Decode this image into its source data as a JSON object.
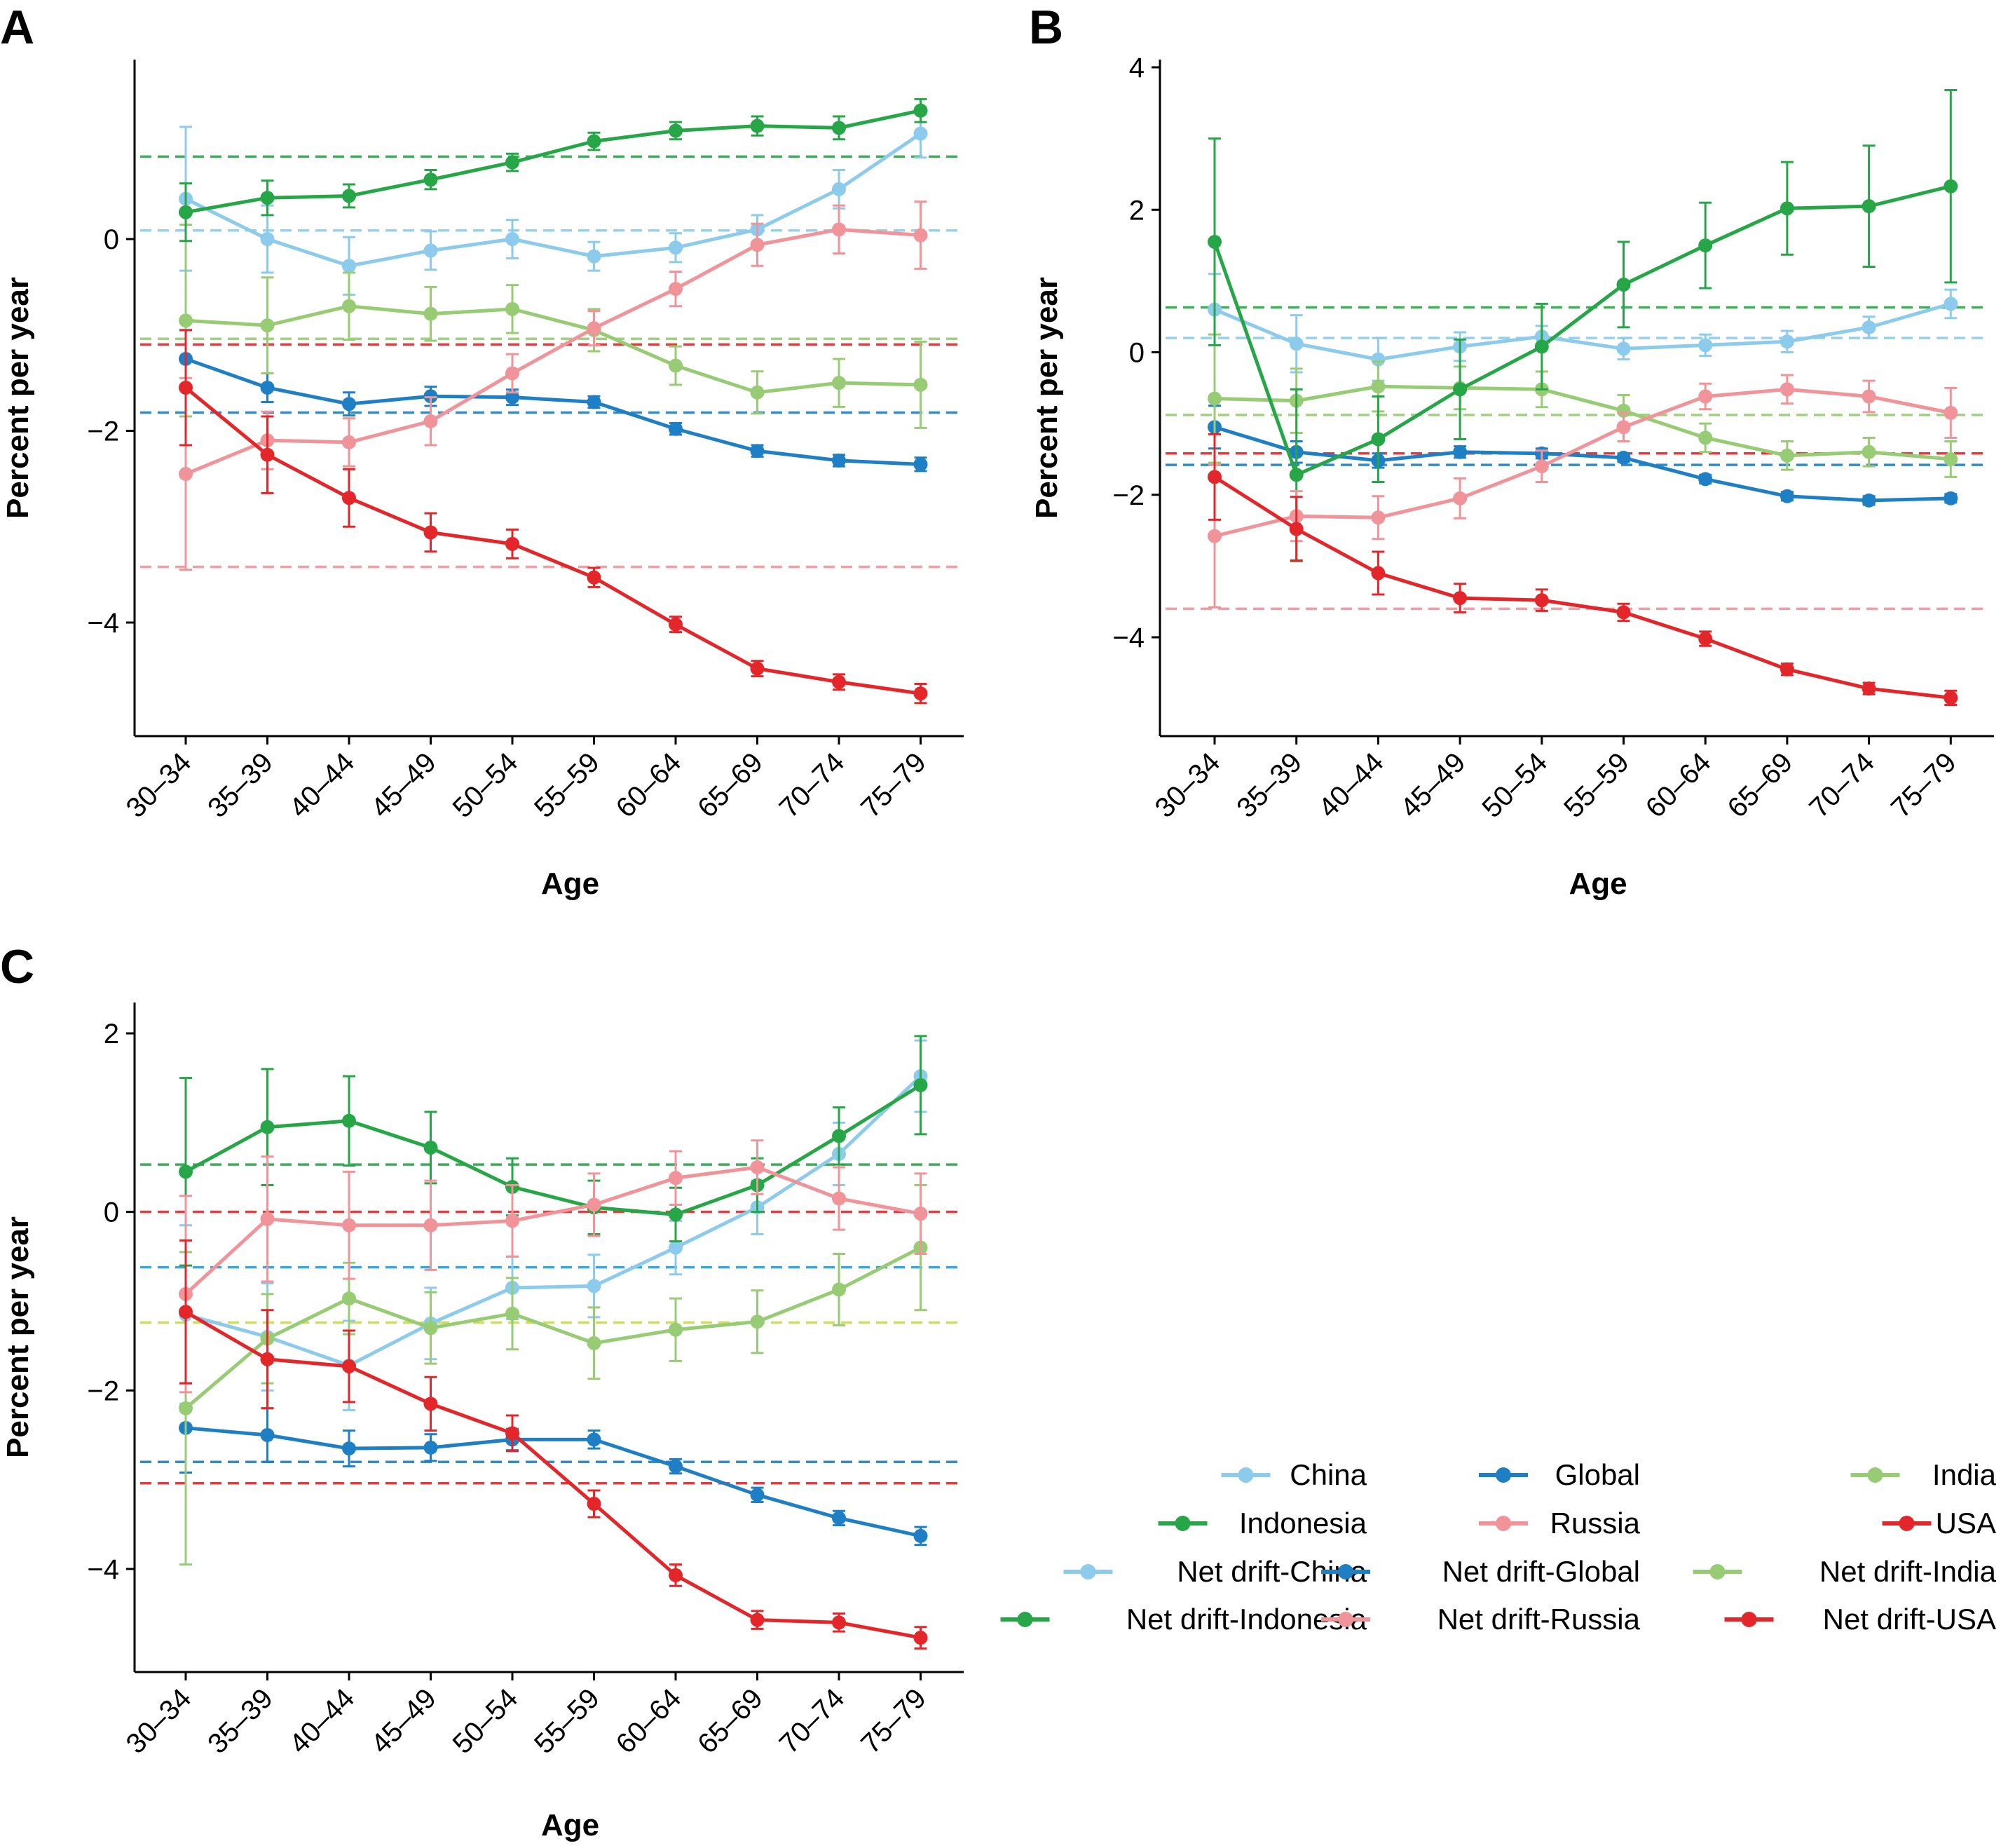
{
  "colors": {
    "China": "#8ccbeb",
    "Global": "#1f7fc4",
    "India": "#98cc74",
    "Indonesia": "#27a647",
    "Russia": "#f09499",
    "USA": "#e3262a",
    "axis": "#000000"
  },
  "legend": {
    "items": [
      {
        "label": "China",
        "color": "#8ccbeb"
      },
      {
        "label": "Global",
        "color": "#1f7fc4"
      },
      {
        "label": "India",
        "color": "#98cc74"
      },
      {
        "label": "Indonesia",
        "color": "#27a647"
      },
      {
        "label": "Russia",
        "color": "#f09499"
      },
      {
        "label": "USA",
        "color": "#e3262a"
      },
      {
        "label": "Net drift-China",
        "color": "#8ccbeb"
      },
      {
        "label": "Net drift-Global",
        "color": "#1f7fc4"
      },
      {
        "label": "Net drift-India",
        "color": "#98cc74"
      },
      {
        "label": "Net drift-Indonesia",
        "color": "#27a647"
      },
      {
        "label": "Net drift-Russia",
        "color": "#f09499"
      },
      {
        "label": "Net drift-USA",
        "color": "#e3262a"
      }
    ]
  },
  "chart_data": [
    {
      "panel": "A",
      "type": "line",
      "xlabel": "Age",
      "ylabel": "Percent per year",
      "categories": [
        "30–34",
        "35–39",
        "40–44",
        "45–49",
        "50–54",
        "55–59",
        "60–64",
        "65–69",
        "70–74",
        "75–79"
      ],
      "ylim": [
        -5.1,
        1.9
      ],
      "yticks": [
        0,
        -2,
        -4
      ],
      "ytick_labels": [
        "0",
        "−2",
        "−4"
      ],
      "series": [
        {
          "name": "China",
          "color": "#8ccbeb",
          "values": [
            0.42,
            0.0,
            -0.28,
            -0.12,
            0.0,
            -0.18,
            -0.09,
            0.1,
            0.52,
            1.1
          ],
          "err": [
            0.75,
            0.35,
            0.3,
            0.2,
            0.2,
            0.15,
            0.15,
            0.15,
            0.2,
            0.25
          ]
        },
        {
          "name": "Global",
          "color": "#1f7fc4",
          "values": [
            -1.25,
            -1.55,
            -1.72,
            -1.64,
            -1.65,
            -1.7,
            -1.98,
            -2.21,
            -2.31,
            -2.35
          ],
          "err": [
            0.3,
            0.15,
            0.12,
            0.1,
            0.08,
            0.06,
            0.06,
            0.06,
            0.06,
            0.07
          ]
        },
        {
          "name": "India",
          "color": "#98cc74",
          "values": [
            -0.85,
            -0.9,
            -0.7,
            -0.78,
            -0.73,
            -0.95,
            -1.32,
            -1.6,
            -1.5,
            -1.52
          ],
          "err": [
            1.0,
            0.5,
            0.35,
            0.28,
            0.25,
            0.22,
            0.2,
            0.22,
            0.25,
            0.45
          ]
        },
        {
          "name": "Indonesia",
          "color": "#27a647",
          "values": [
            0.28,
            0.43,
            0.45,
            0.62,
            0.8,
            1.02,
            1.13,
            1.18,
            1.16,
            1.34
          ],
          "err": [
            0.3,
            0.18,
            0.12,
            0.1,
            0.09,
            0.09,
            0.09,
            0.1,
            0.12,
            0.12
          ]
        },
        {
          "name": "Russia",
          "color": "#f09499",
          "values": [
            -2.45,
            -2.1,
            -2.12,
            -1.9,
            -1.4,
            -0.93,
            -0.52,
            -0.06,
            0.1,
            0.04
          ],
          "err": [
            1.0,
            0.3,
            0.25,
            0.25,
            0.2,
            0.18,
            0.18,
            0.22,
            0.25,
            0.35
          ]
        },
        {
          "name": "USA",
          "color": "#e3262a",
          "values": [
            -1.55,
            -2.25,
            -2.7,
            -3.06,
            -3.18,
            -3.53,
            -4.02,
            -4.48,
            -4.62,
            -4.74
          ],
          "err": [
            0.6,
            0.4,
            0.3,
            0.2,
            0.15,
            0.1,
            0.08,
            0.08,
            0.08,
            0.1
          ]
        }
      ],
      "net_drift": [
        {
          "name": "Net drift-Indonesia",
          "color": "#27a647",
          "value": 0.86
        },
        {
          "name": "Net drift-China",
          "color": "#8ccbeb",
          "value": 0.09
        },
        {
          "name": "Net drift-India",
          "color": "#98cc74",
          "value": -1.04
        },
        {
          "name": "Net drift-USA",
          "color": "#e3262a",
          "value": -1.1
        },
        {
          "name": "Net drift-Global",
          "color": "#1f7fc4",
          "value": -1.81
        },
        {
          "name": "Net drift-Russia",
          "color": "#f09499",
          "value": -3.42
        }
      ]
    },
    {
      "panel": "B",
      "type": "line",
      "xlabel": "Age",
      "ylabel": "Percent per year",
      "categories": [
        "30–34",
        "35–39",
        "40–44",
        "45–49",
        "50–54",
        "55–59",
        "60–64",
        "65–69",
        "70–74",
        "75–79"
      ],
      "ylim": [
        -5.4,
        4.2
      ],
      "yticks": [
        4,
        2,
        0,
        -2,
        -4
      ],
      "ytick_labels": [
        "4",
        "2",
        "0",
        "−2",
        "−4"
      ],
      "series": [
        {
          "name": "China",
          "color": "#8ccbeb",
          "values": [
            0.6,
            0.12,
            -0.1,
            0.08,
            0.22,
            0.05,
            0.1,
            0.15,
            0.35,
            0.68
          ],
          "err": [
            0.5,
            0.4,
            0.3,
            0.2,
            0.15,
            0.15,
            0.15,
            0.15,
            0.15,
            0.2
          ]
        },
        {
          "name": "Global",
          "color": "#1f7fc4",
          "values": [
            -1.05,
            -1.4,
            -1.52,
            -1.4,
            -1.42,
            -1.48,
            -1.78,
            -2.02,
            -2.08,
            -2.05
          ],
          "err": [
            0.3,
            0.15,
            0.1,
            0.08,
            0.07,
            0.06,
            0.06,
            0.06,
            0.06,
            0.06
          ]
        },
        {
          "name": "India",
          "color": "#98cc74",
          "values": [
            -0.65,
            -0.68,
            -0.48,
            -0.5,
            -0.52,
            -0.82,
            -1.2,
            -1.45,
            -1.4,
            -1.5
          ],
          "err": [
            0.9,
            0.45,
            0.35,
            0.3,
            0.25,
            0.22,
            0.2,
            0.2,
            0.2,
            0.25
          ]
        },
        {
          "name": "Indonesia",
          "color": "#27a647",
          "values": [
            1.55,
            -1.72,
            -1.22,
            -0.52,
            0.08,
            0.95,
            1.5,
            2.02,
            2.05,
            2.33
          ],
          "err": [
            1.45,
            1.2,
            0.6,
            0.7,
            0.6,
            0.6,
            0.6,
            0.65,
            0.85,
            1.35
          ]
        },
        {
          "name": "Russia",
          "color": "#f09499",
          "values": [
            -2.58,
            -2.3,
            -2.32,
            -2.05,
            -1.6,
            -1.05,
            -0.62,
            -0.52,
            -0.62,
            -0.85
          ],
          "err": [
            1.0,
            0.35,
            0.3,
            0.28,
            0.22,
            0.2,
            0.18,
            0.2,
            0.22,
            0.35
          ]
        },
        {
          "name": "USA",
          "color": "#e3262a",
          "values": [
            -1.75,
            -2.48,
            -3.1,
            -3.45,
            -3.48,
            -3.65,
            -4.02,
            -4.45,
            -4.72,
            -4.85
          ],
          "err": [
            0.6,
            0.45,
            0.3,
            0.2,
            0.15,
            0.12,
            0.1,
            0.08,
            0.08,
            0.1
          ]
        }
      ],
      "net_drift": [
        {
          "name": "Net drift-Indonesia",
          "color": "#27a647",
          "value": 0.63
        },
        {
          "name": "Net drift-China",
          "color": "#8ccbeb",
          "value": 0.2
        },
        {
          "name": "Net drift-India",
          "color": "#98cc74",
          "value": -0.88
        },
        {
          "name": "Net drift-USA",
          "color": "#e3262a",
          "value": -1.42
        },
        {
          "name": "Net drift-Global",
          "color": "#1f7fc4",
          "value": -1.58
        },
        {
          "name": "Net drift-Russia",
          "color": "#f09499",
          "value": -3.6
        }
      ]
    },
    {
      "panel": "C",
      "type": "line",
      "xlabel": "Age",
      "ylabel": "Percent per year",
      "categories": [
        "30–34",
        "35–39",
        "40–44",
        "45–49",
        "50–54",
        "55–59",
        "60–64",
        "65–69",
        "70–74",
        "75–79"
      ],
      "ylim": [
        -5.3,
        2.3
      ],
      "yticks": [
        2,
        0,
        -2,
        -4
      ],
      "ytick_labels": [
        "2",
        "0",
        "−2",
        "−4"
      ],
      "series": [
        {
          "name": "China",
          "color": "#8ccbeb",
          "values": [
            -1.15,
            -1.4,
            -1.72,
            -1.25,
            -0.85,
            -0.83,
            -0.4,
            0.05,
            0.65,
            1.52
          ],
          "err": [
            1.0,
            0.6,
            0.5,
            0.4,
            0.35,
            0.35,
            0.3,
            0.3,
            0.35,
            0.4
          ]
        },
        {
          "name": "Global",
          "color": "#1f7fc4",
          "values": [
            -2.42,
            -2.5,
            -2.65,
            -2.64,
            -2.55,
            -2.55,
            -2.85,
            -3.17,
            -3.43,
            -3.63
          ],
          "err": [
            0.5,
            0.3,
            0.2,
            0.15,
            0.12,
            0.1,
            0.08,
            0.08,
            0.08,
            0.1
          ]
        },
        {
          "name": "India",
          "color": "#98cc74",
          "values": [
            -2.2,
            -1.42,
            -0.97,
            -1.3,
            -1.14,
            -1.47,
            -1.32,
            -1.23,
            -0.87,
            -0.4
          ],
          "err": [
            1.75,
            0.5,
            0.4,
            0.4,
            0.4,
            0.4,
            0.35,
            0.35,
            0.4,
            0.7
          ]
        },
        {
          "name": "Indonesia",
          "color": "#27a647",
          "values": [
            0.45,
            0.95,
            1.02,
            0.72,
            0.28,
            0.05,
            -0.03,
            0.3,
            0.85,
            1.42
          ],
          "err": [
            1.05,
            0.65,
            0.5,
            0.4,
            0.32,
            0.3,
            0.3,
            0.3,
            0.32,
            0.55
          ]
        },
        {
          "name": "Russia",
          "color": "#f09499",
          "values": [
            -0.92,
            -0.08,
            -0.15,
            -0.15,
            -0.1,
            0.08,
            0.38,
            0.5,
            0.15,
            -0.02
          ],
          "err": [
            1.1,
            0.7,
            0.6,
            0.5,
            0.4,
            0.35,
            0.3,
            0.3,
            0.35,
            0.45
          ]
        },
        {
          "name": "USA",
          "color": "#e3262a",
          "values": [
            -1.12,
            -1.65,
            -1.73,
            -2.15,
            -2.48,
            -3.27,
            -4.07,
            -4.57,
            -4.6,
            -4.77
          ],
          "err": [
            0.8,
            0.55,
            0.4,
            0.3,
            0.2,
            0.15,
            0.12,
            0.1,
            0.1,
            0.12
          ]
        }
      ],
      "net_drift": [
        {
          "name": "Net drift-Indonesia",
          "color": "#27a647",
          "value": 0.53
        },
        {
          "name": "Net drift-Russia",
          "color": "#e3262a",
          "value": 0.0
        },
        {
          "name": "Net drift-China",
          "color": "#1f9fe0",
          "value": -0.62
        },
        {
          "name": "Net drift-India",
          "color": "#c8d94a",
          "value": -1.24
        },
        {
          "name": "Net drift-Global",
          "color": "#1f7fc4",
          "value": -2.8
        },
        {
          "name": "Net drift-USA",
          "color": "#e3262a",
          "value": -3.04
        }
      ]
    }
  ]
}
